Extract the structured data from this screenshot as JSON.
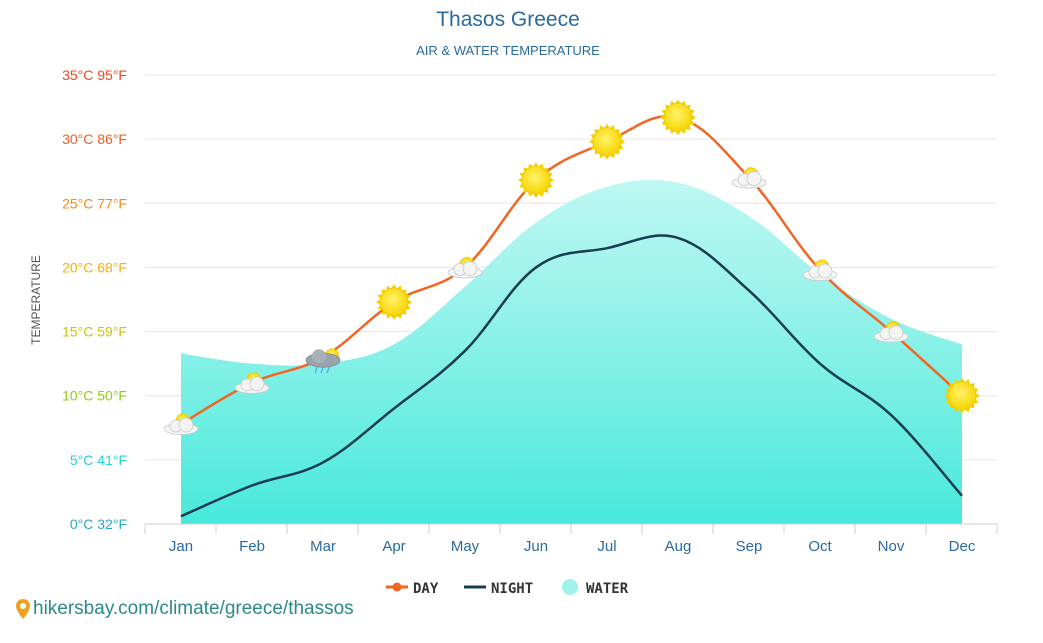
{
  "header": {
    "title": "Thasos Greece",
    "subtitle": "AIR & WATER TEMPERATURE"
  },
  "footer": {
    "link_text": "hikersbay.com/climate/greece/thassos"
  },
  "colors": {
    "day": "#f26522",
    "night": "#1a3c50",
    "water": "#7ff0e6",
    "title": "#2a6aa0",
    "tick_x": "#2a6aa0"
  },
  "chart_data": {
    "type": "line",
    "title": "Thasos Greece",
    "subtitle": "AIR & WATER TEMPERATURE",
    "ylabel": "TEMPERATURE",
    "xlabel": "",
    "ylim": [
      0,
      35
    ],
    "y_ticks": [
      {
        "value": 0,
        "label": "0°C 32°F",
        "color": "#2aa7c6"
      },
      {
        "value": 5,
        "label": "5°C 41°F",
        "color": "#2ad0d0"
      },
      {
        "value": 10,
        "label": "10°C 50°F",
        "color": "#8ccc1a"
      },
      {
        "value": 15,
        "label": "15°C 59°F",
        "color": "#c8c414"
      },
      {
        "value": 20,
        "label": "20°C 68°F",
        "color": "#f0b018"
      },
      {
        "value": 25,
        "label": "25°C 77°F",
        "color": "#f08c1c"
      },
      {
        "value": 30,
        "label": "30°C 86°F",
        "color": "#f06020"
      },
      {
        "value": 35,
        "label": "35°C 95°F",
        "color": "#f04820"
      }
    ],
    "categories": [
      "Jan",
      "Feb",
      "Mar",
      "Apr",
      "May",
      "Jun",
      "Jul",
      "Aug",
      "Sep",
      "Oct",
      "Nov",
      "Dec"
    ],
    "series": [
      {
        "name": "DAY",
        "kind": "line",
        "color": "#f26522",
        "values": [
          7.8,
          11.0,
          13.0,
          17.3,
          20.0,
          26.8,
          29.8,
          31.7,
          27.0,
          19.8,
          15.0,
          10.0
        ]
      },
      {
        "name": "NIGHT",
        "kind": "line",
        "color": "#1a3c50",
        "values": [
          0.6,
          3.0,
          4.8,
          9.0,
          13.5,
          20.0,
          21.5,
          22.3,
          18.2,
          12.5,
          8.5,
          2.2
        ]
      },
      {
        "name": "WATER",
        "kind": "area",
        "color": "#7ff0e6",
        "values": [
          13.3,
          12.5,
          12.5,
          14.0,
          18.5,
          23.5,
          26.3,
          26.6,
          24.0,
          19.5,
          16.0,
          14.0
        ]
      }
    ],
    "weather_icons": [
      "partly-cloudy",
      "partly-cloudy",
      "rain",
      "sun",
      "partly-cloudy",
      "sun",
      "sun",
      "sun",
      "partly-cloudy",
      "partly-cloudy",
      "partly-cloudy",
      "sun"
    ],
    "legend": {
      "position": "bottom",
      "items": [
        "DAY",
        "NIGHT",
        "WATER"
      ]
    },
    "grid": true
  }
}
